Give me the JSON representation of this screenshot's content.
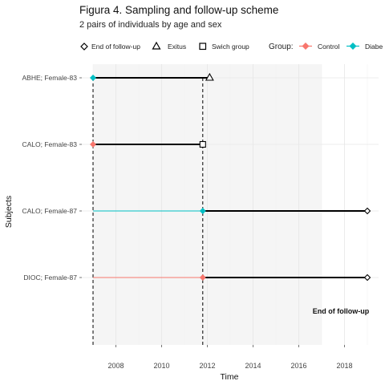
{
  "title": "Figura 4. Sampling and follow-up scheme",
  "subtitle": "2 pairs of individuals by age and sex",
  "legend": {
    "shapes": [
      {
        "label": "End of follow-up",
        "shape": "diamond-open"
      },
      {
        "label": "Exitus",
        "shape": "triangle-open"
      },
      {
        "label": "Swich group",
        "shape": "square-open"
      }
    ],
    "group_title": "Group:",
    "groups": [
      {
        "label": "Control",
        "color": "#f8766d"
      },
      {
        "label": "Diabe",
        "color": "#00bfc4"
      }
    ]
  },
  "annotation": "End of follow-up",
  "chart_data": {
    "type": "timeline",
    "xlabel": "Time",
    "ylabel": "Subjects",
    "xlim": [
      2006.5,
      2019.5
    ],
    "x_ticks": [
      2008,
      2010,
      2012,
      2014,
      2016,
      2018
    ],
    "shaded_period": [
      2007,
      2017
    ],
    "dashed_lines": [
      2007,
      2011.8
    ],
    "grid": true,
    "legend_position": "top",
    "subjects": [
      "ABHE; Female-83",
      "CALO; Female-83",
      "CALO; Female-87",
      "DIOC; Female-87"
    ],
    "segments": [
      {
        "subject": "ABHE; Female-83",
        "start": 2007,
        "switch": 2007,
        "end": 2012.1,
        "group_before": "Diabe",
        "end_marker": "Exitus"
      },
      {
        "subject": "CALO; Female-83",
        "start": 2007,
        "switch": 2007,
        "end": 2011.8,
        "group_before": "Control",
        "end_marker": "Swich group"
      },
      {
        "subject": "CALO; Female-87",
        "start": 2007,
        "switch": 2011.8,
        "end": 2019,
        "group_before": "Diabe",
        "end_marker": "End of follow-up"
      },
      {
        "subject": "DIOC; Female-87",
        "start": 2007,
        "switch": 2011.8,
        "end": 2019,
        "group_before": "Control",
        "end_marker": "End of follow-up"
      }
    ]
  }
}
